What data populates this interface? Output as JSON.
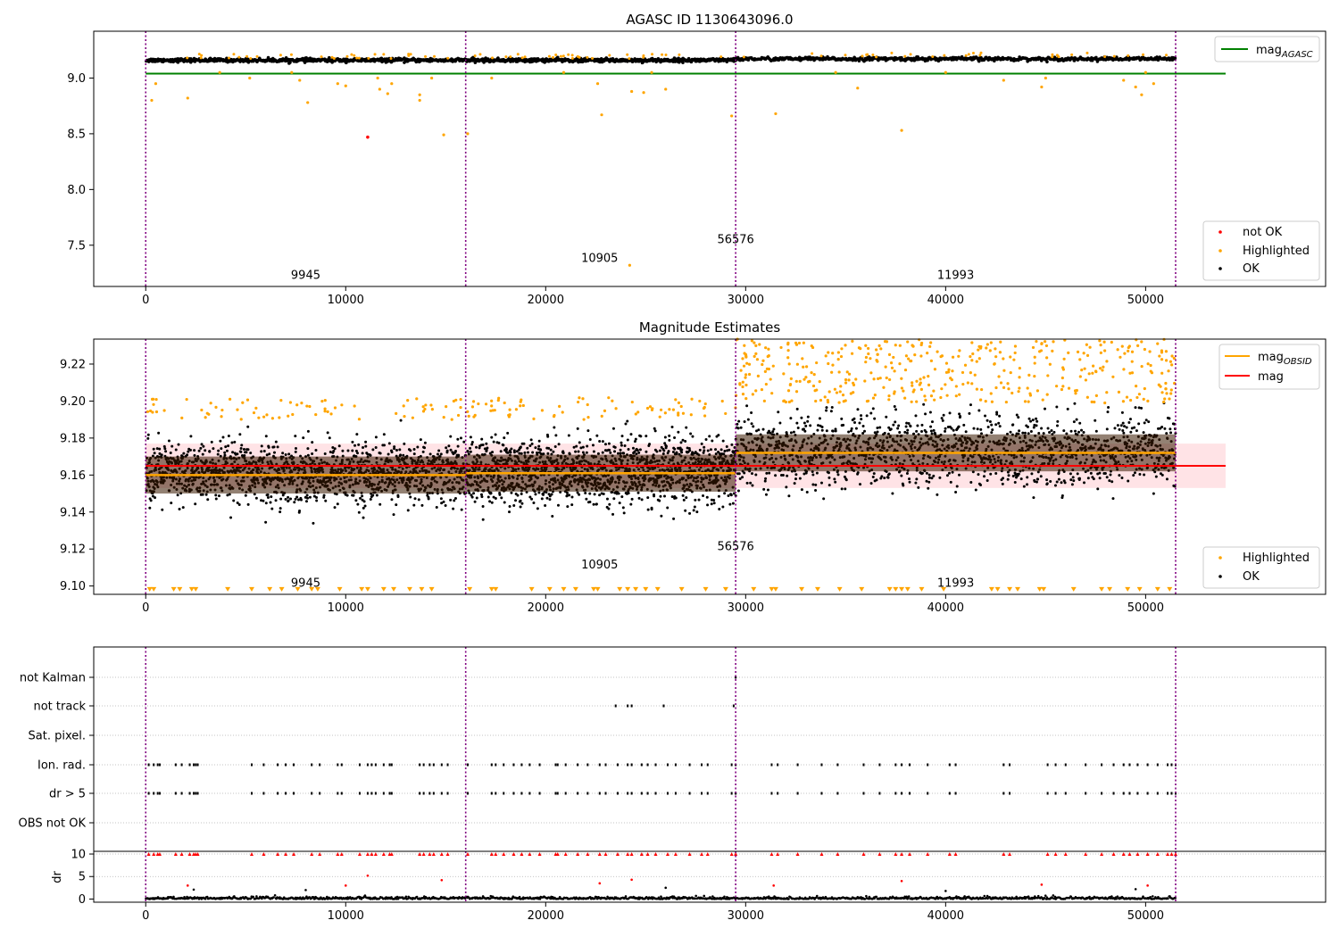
{
  "chart_data": [
    {
      "type": "scatter",
      "title": "AGASC ID 1130643096.0",
      "xlim": [
        -2600,
        59000
      ],
      "ylim": [
        7.13,
        9.42
      ],
      "xticks": [
        "0",
        "10000",
        "20000",
        "30000",
        "40000",
        "50000"
      ],
      "xtick_values": [
        0,
        10000,
        20000,
        30000,
        40000,
        50000
      ],
      "yticks": [
        "7.5",
        "8.0",
        "8.5",
        "9.0"
      ],
      "ytick_values": [
        7.5,
        8.0,
        8.5,
        9.0
      ],
      "observation_boundaries": [
        0,
        16000,
        29500,
        51500
      ],
      "observation_labels": [
        {
          "text": "9945",
          "x": 8000,
          "y": 7.2
        },
        {
          "text": "10905",
          "x": 22700,
          "y": 7.35
        },
        {
          "text": "56576",
          "x": 29500,
          "y": 7.52
        },
        {
          "text": "11993",
          "x": 40500,
          "y": 7.2
        }
      ],
      "mag_agasc": {
        "value": 9.04,
        "x_range": [
          0,
          54000
        ]
      },
      "segments": [
        {
          "x0": 0,
          "x1": 16000,
          "level": 9.16
        },
        {
          "x0": 16000,
          "x1": 29500,
          "level": 9.16
        },
        {
          "x0": 29500,
          "x1": 51500,
          "level": 9.172
        }
      ],
      "highlighted_outliers": [
        [
          300,
          8.8
        ],
        [
          500,
          8.95
        ],
        [
          2100,
          8.82
        ],
        [
          3700,
          9.05
        ],
        [
          5200,
          9.0
        ],
        [
          7300,
          9.05
        ],
        [
          7700,
          8.98
        ],
        [
          8100,
          8.78
        ],
        [
          9600,
          8.95
        ],
        [
          10000,
          8.93
        ],
        [
          11600,
          9.0
        ],
        [
          11700,
          8.9
        ],
        [
          12100,
          8.86
        ],
        [
          12300,
          8.95
        ],
        [
          13700,
          8.85
        ],
        [
          13700,
          8.8
        ],
        [
          14300,
          9.0
        ],
        [
          14900,
          8.49
        ],
        [
          16100,
          8.5
        ],
        [
          17300,
          9.0
        ],
        [
          20900,
          9.05
        ],
        [
          22600,
          8.95
        ],
        [
          22800,
          8.67
        ],
        [
          24300,
          8.88
        ],
        [
          24900,
          8.87
        ],
        [
          25300,
          9.05
        ],
        [
          26000,
          8.9
        ],
        [
          29300,
          8.66
        ],
        [
          31500,
          8.68
        ],
        [
          34500,
          9.05
        ],
        [
          35600,
          8.91
        ],
        [
          37800,
          8.53
        ],
        [
          40000,
          9.05
        ],
        [
          42900,
          8.98
        ],
        [
          44800,
          8.92
        ],
        [
          45000,
          9.0
        ],
        [
          48900,
          8.98
        ],
        [
          49500,
          8.92
        ],
        [
          49800,
          8.85
        ],
        [
          50000,
          9.05
        ],
        [
          50400,
          8.95
        ],
        [
          24200,
          7.32
        ]
      ],
      "not_ok_points": [
        [
          11100,
          8.47
        ]
      ],
      "legend_lines": [
        {
          "label": "mag",
          "subscript": "AGASC",
          "color": "#008000"
        }
      ],
      "legend_markers": [
        {
          "label": "not OK",
          "color": "#ff0000"
        },
        {
          "label": "Highlighted",
          "color": "#ffa500"
        },
        {
          "label": "OK",
          "color": "#000000"
        }
      ]
    },
    {
      "type": "scatter",
      "title": "Magnitude Estimates",
      "xlim": [
        -2600,
        59000
      ],
      "ylim": [
        9.0955,
        9.2335
      ],
      "xticks": [
        "0",
        "10000",
        "20000",
        "30000",
        "40000",
        "50000"
      ],
      "xtick_values": [
        0,
        10000,
        20000,
        30000,
        40000,
        50000
      ],
      "yticks": [
        "9.10",
        "9.12",
        "9.14",
        "9.16",
        "9.18",
        "9.20",
        "9.22"
      ],
      "ytick_values": [
        9.1,
        9.12,
        9.14,
        9.16,
        9.18,
        9.2,
        9.22
      ],
      "observation_boundaries": [
        0,
        16000,
        29500,
        51500
      ],
      "observation_labels": [
        {
          "text": "9945",
          "x": 8000,
          "y": 9.0995
        },
        {
          "text": "10905",
          "x": 22700,
          "y": 9.1095
        },
        {
          "text": "56576",
          "x": 29500,
          "y": 9.1195
        },
        {
          "text": "11993",
          "x": 40500,
          "y": 9.0995
        }
      ],
      "mag": {
        "value": 9.165,
        "band": [
          9.153,
          9.177
        ],
        "x_range": [
          0,
          54000
        ]
      },
      "mag_obsid": [
        {
          "x0": 0,
          "x1": 16000,
          "value": 9.16
        },
        {
          "x0": 16000,
          "x1": 29500,
          "value": 9.161
        },
        {
          "x0": 29500,
          "x1": 51500,
          "value": 9.172
        }
      ],
      "segments": [
        {
          "x0": 0,
          "x1": 16000,
          "center": 9.161,
          "sigma": 0.008,
          "highlight_above": 9.19
        },
        {
          "x0": 16000,
          "x1": 29500,
          "center": 9.162,
          "sigma": 0.0085,
          "highlight_above": 9.19
        },
        {
          "x0": 29500,
          "x1": 51500,
          "center": 9.173,
          "sigma": 0.0095,
          "highlight_above": 9.199
        }
      ],
      "floor_markers_x": [
        200,
        400,
        1400,
        1700,
        2300,
        2500,
        4100,
        5300,
        6200,
        6800,
        7600,
        8300,
        8600,
        9700,
        10800,
        11100,
        11900,
        12400,
        13200,
        13800,
        14300,
        16200,
        17300,
        17500,
        19300,
        20200,
        20900,
        21500,
        22400,
        22600,
        23700,
        24100,
        24500,
        25000,
        25600,
        26800,
        28000,
        29000,
        30400,
        31300,
        31500,
        32800,
        33600,
        34700,
        35800,
        37200,
        37500,
        37800,
        38100,
        38800,
        39900,
        42300,
        42600,
        43200,
        43600,
        44700,
        44900,
        46400,
        47800,
        48200,
        49100,
        49700,
        50600,
        51200
      ],
      "legend_lines": [
        {
          "label": "mag",
          "subscript": "OBSID",
          "color": "#ffa500"
        },
        {
          "label": "mag",
          "subscript": "",
          "color": "#ff0000"
        }
      ],
      "legend_markers": [
        {
          "label": "Highlighted",
          "color": "#ffa500"
        },
        {
          "label": "OK",
          "color": "#000000"
        }
      ]
    },
    {
      "type": "scatter",
      "title": "",
      "xlim": [
        -2600,
        59000
      ],
      "xticks": [
        "0",
        "10000",
        "20000",
        "30000",
        "40000",
        "50000"
      ],
      "xtick_values": [
        0,
        10000,
        20000,
        30000,
        40000,
        50000
      ],
      "observation_boundaries": [
        0,
        16000,
        29500,
        51500
      ],
      "flag_rows": [
        "not Kalman",
        "not track",
        "Sat. pixel.",
        "Ion. rad.",
        "dr > 5",
        "OBS not OK"
      ],
      "flag_points": {
        "not Kalman": [
          29500
        ],
        "not track": [
          23500,
          24100,
          24300,
          25900,
          29400
        ],
        "Sat. pixel.": [],
        "Ion. rad.": [
          150,
          400,
          600,
          700,
          1500,
          1800,
          2200,
          2400,
          2500,
          2600,
          5300,
          5900,
          6600,
          7000,
          7400,
          8300,
          8700,
          9600,
          9800,
          10700,
          11100,
          11300,
          11500,
          11900,
          12200,
          12300,
          13700,
          13900,
          14200,
          14400,
          14800,
          15100,
          16100,
          17300,
          17500,
          17900,
          18400,
          18800,
          19200,
          19700,
          20500,
          20600,
          21000,
          21600,
          22100,
          22700,
          23000,
          23600,
          24100,
          24300,
          24800,
          25100,
          25500,
          26100,
          26500,
          27200,
          27800,
          28100,
          29300,
          29500,
          31300,
          31600,
          32600,
          33800,
          34600,
          35900,
          36700,
          37500,
          37800,
          38200,
          39100,
          40200,
          40500,
          42900,
          43200,
          45100,
          45500,
          46000,
          47000,
          47800,
          48400,
          48900,
          49200,
          49600,
          50100,
          50600,
          51100,
          51300,
          51500
        ],
        "dr > 5": [
          150,
          400,
          600,
          700,
          1500,
          1800,
          2200,
          2400,
          2500,
          2600,
          5300,
          5900,
          6600,
          7000,
          7400,
          8300,
          8700,
          9600,
          9800,
          10700,
          11100,
          11300,
          11500,
          11900,
          12200,
          12300,
          13700,
          13900,
          14200,
          14400,
          14800,
          15100,
          16100,
          17300,
          17500,
          17900,
          18400,
          18800,
          19200,
          19700,
          20500,
          20600,
          21000,
          21600,
          22100,
          22700,
          23000,
          23600,
          24100,
          24300,
          24800,
          25100,
          25500,
          26100,
          26500,
          27200,
          27800,
          28100,
          29300,
          29500,
          31300,
          31600,
          32600,
          33800,
          34600,
          35900,
          36700,
          37500,
          37800,
          38200,
          39100,
          40200,
          40500,
          42900,
          43200,
          45100,
          45500,
          46000,
          47000,
          47800,
          48400,
          48900,
          49200,
          49600,
          50100,
          50600,
          51100,
          51300,
          51500
        ],
        "OBS not OK": []
      }
    },
    {
      "type": "scatter",
      "title": "",
      "ylabel": "dr",
      "xlim": [
        -2600,
        59000
      ],
      "ylim": [
        -0.7,
        10.6
      ],
      "xticks": [
        "0",
        "10000",
        "20000",
        "30000",
        "40000",
        "50000"
      ],
      "xtick_values": [
        0,
        10000,
        20000,
        30000,
        40000,
        50000
      ],
      "yticks": [
        "0",
        "5",
        "10"
      ],
      "ytick_values": [
        0,
        5,
        10
      ],
      "observation_boundaries": [
        0,
        16000,
        29500,
        51500
      ],
      "capped_points_x": [
        150,
        400,
        600,
        700,
        1500,
        1800,
        2200,
        2400,
        2500,
        2600,
        5300,
        5900,
        6600,
        7000,
        7400,
        8300,
        8700,
        9600,
        9800,
        10700,
        11100,
        11300,
        11500,
        11900,
        12200,
        12300,
        13700,
        13900,
        14200,
        14400,
        14800,
        15100,
        16100,
        17300,
        17500,
        17900,
        18400,
        18800,
        19200,
        19700,
        20500,
        20600,
        21000,
        21600,
        22100,
        22700,
        23000,
        23600,
        24100,
        24300,
        24800,
        25100,
        25500,
        26100,
        26500,
        27200,
        27800,
        28100,
        29300,
        29500,
        31300,
        31600,
        32600,
        33800,
        34600,
        35900,
        36700,
        37500,
        37800,
        38200,
        39100,
        40200,
        40500,
        42900,
        43200,
        45100,
        45500,
        46000,
        47000,
        47800,
        48400,
        48900,
        49200,
        49600,
        50100,
        50600,
        51100,
        51300,
        51500
      ],
      "mid_points": [
        [
          2100,
          3.0
        ],
        [
          11100,
          5.2
        ],
        [
          10000,
          3.0
        ],
        [
          14800,
          4.2
        ],
        [
          22700,
          3.5
        ],
        [
          24300,
          4.3
        ],
        [
          31400,
          3.0
        ],
        [
          37800,
          4.0
        ],
        [
          44800,
          3.2
        ],
        [
          50100,
          3.0
        ],
        [
          8000,
          2.0
        ],
        [
          2400,
          2.1
        ],
        [
          26000,
          2.5
        ],
        [
          40000,
          1.8
        ],
        [
          49500,
          2.2
        ]
      ]
    }
  ]
}
